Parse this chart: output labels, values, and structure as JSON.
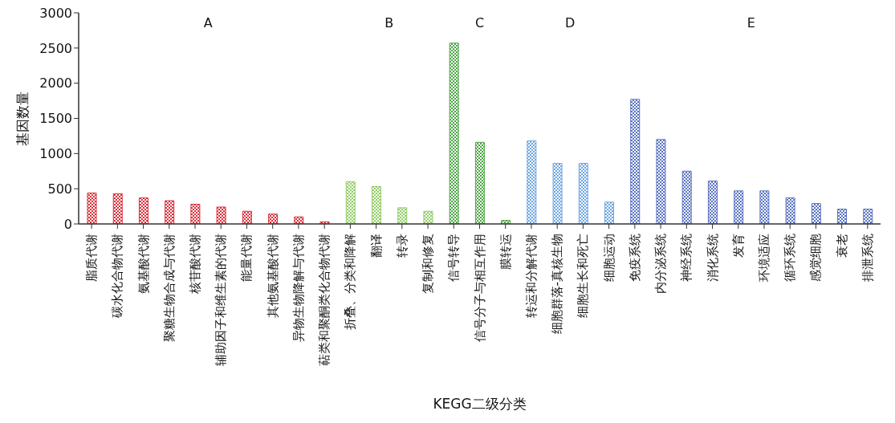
{
  "chart_data": {
    "type": "bar",
    "xlabel": "KEGG二级分类",
    "ylabel": "基因数量",
    "categories": [
      "脂质代谢",
      "碳水化合物代谢",
      "氨基酸代谢",
      "聚糖生物合成与代谢",
      "核苷酸代谢",
      "辅助因子和维生素的代谢",
      "能量代谢",
      "其他氨基酸代谢",
      "异物生物降解与代谢",
      "萜类和聚酮类化合物代谢",
      "折叠、分类和降解",
      "翻译",
      "转录",
      "复制和修复",
      "信号转导",
      "信号分子与相互作用",
      "膜转运",
      "转运和分解代谢",
      "细胞群落-真核生物",
      "细胞生长和死亡",
      "细胞运动",
      "免疫系统",
      "内分泌系统",
      "神经系统",
      "消化系统",
      "发育",
      "环境适应",
      "循环系统",
      "感觉细胞",
      "衰老",
      "排泄系统"
    ],
    "values": [
      440,
      430,
      370,
      330,
      280,
      240,
      180,
      140,
      100,
      30,
      600,
      530,
      230,
      180,
      2570,
      1160,
      50,
      1180,
      860,
      860,
      310,
      1770,
      1200,
      750,
      610,
      470,
      470,
      370,
      290,
      210,
      210
    ],
    "colors": [
      "#d7303b",
      "#d7303b",
      "#d7303b",
      "#d7303b",
      "#d7303b",
      "#d7303b",
      "#d7303b",
      "#d7303b",
      "#d7303b",
      "#d7303b",
      "#92cc66",
      "#92cc66",
      "#92cc66",
      "#92cc66",
      "#4ea444",
      "#4ea444",
      "#4ea444",
      "#6ea6de",
      "#6ea6de",
      "#6ea6de",
      "#6ea6de",
      "#5a72c0",
      "#5a72c0",
      "#5a72c0",
      "#5a72c0",
      "#5a72c0",
      "#5a72c0",
      "#5a72c0",
      "#5a72c0",
      "#5a72c0",
      "#5a72c0"
    ],
    "ylim": [
      0,
      3000
    ],
    "yticks": [
      0,
      500,
      1000,
      1500,
      2000,
      2500,
      3000
    ],
    "annotations": [
      "A",
      "B",
      "C",
      "D",
      "E"
    ]
  }
}
